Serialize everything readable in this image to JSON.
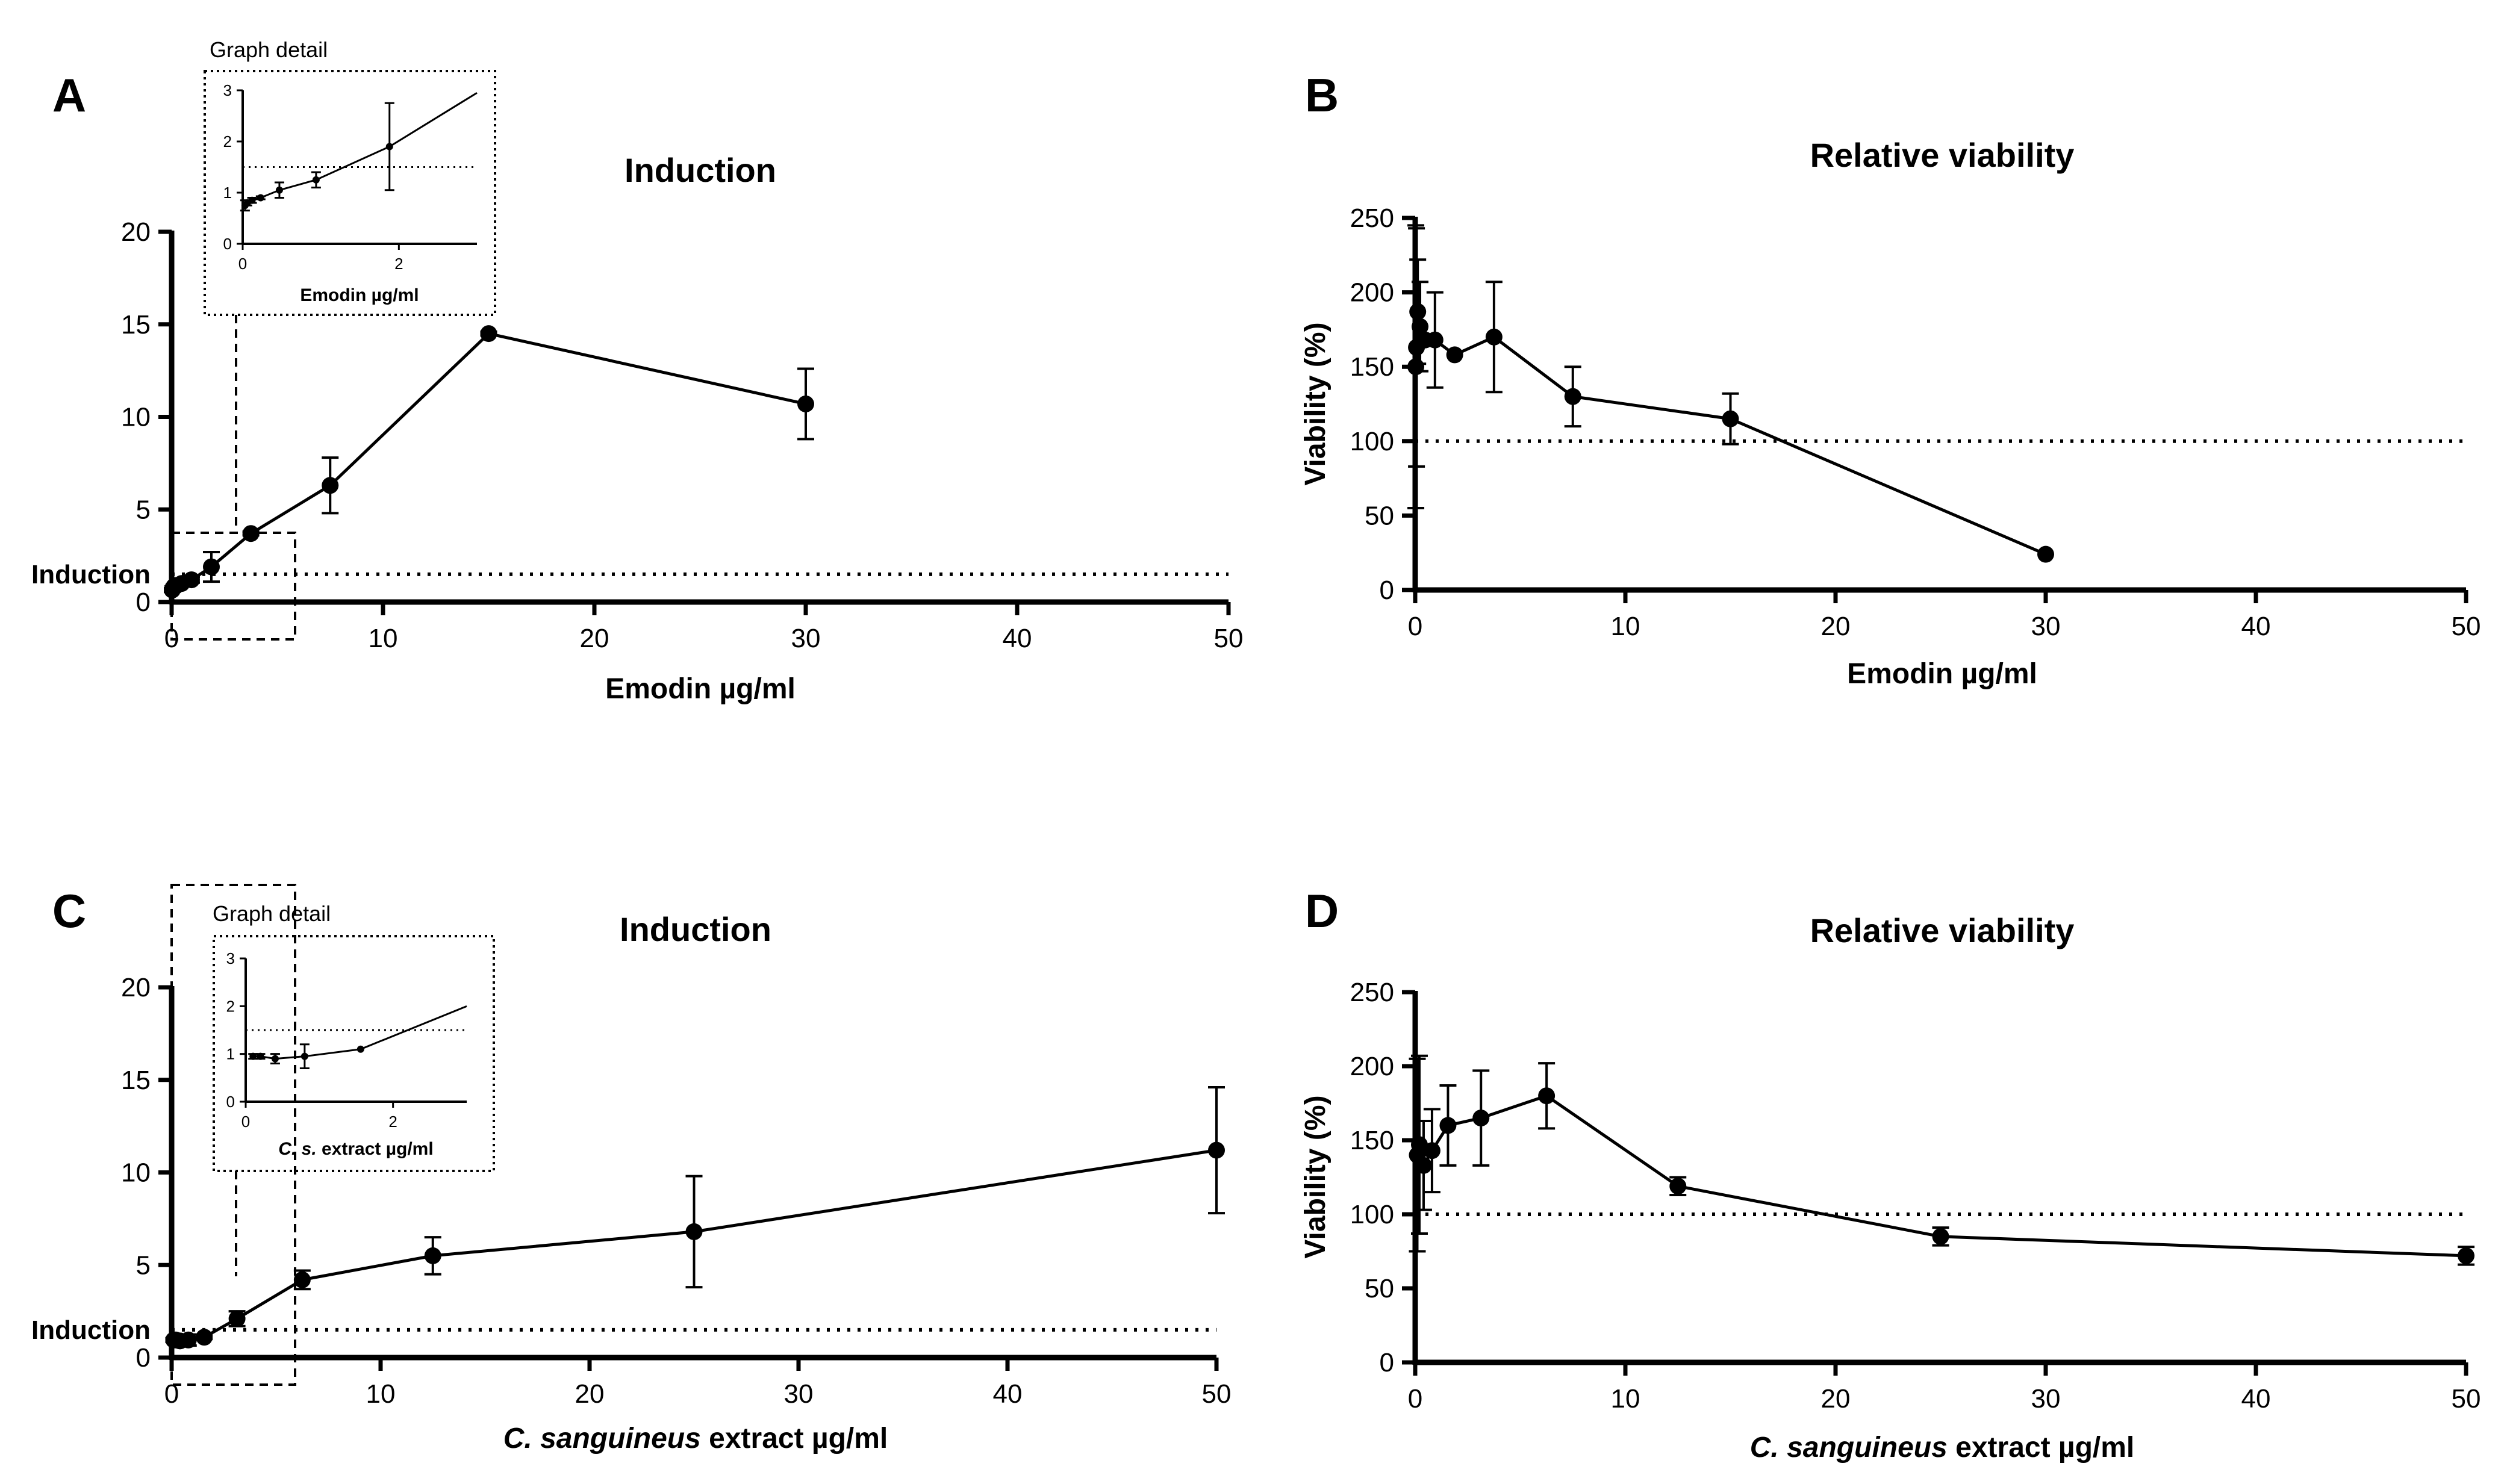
{
  "chart_data": [
    {
      "panel": "A",
      "type": "line",
      "title": "Induction",
      "xlabel": "Emodin µg/ml",
      "ylabel": "",
      "xlim": [
        0,
        50
      ],
      "ylim": [
        0,
        20
      ],
      "xticks": [
        0,
        10,
        20,
        30,
        40,
        50
      ],
      "yticks": [
        0,
        5,
        10,
        15,
        20
      ],
      "reference_line": {
        "y": 1.5,
        "label": "Induction"
      },
      "grid": false,
      "series": [
        {
          "x": [
            0.03,
            0.06,
            0.12,
            0.23,
            0.47,
            0.94,
            1.88,
            3.75,
            7.5,
            15,
            30
          ],
          "y": [
            0.65,
            0.75,
            0.85,
            0.9,
            1.0,
            1.2,
            1.9,
            3.7,
            6.3,
            14.5,
            10.7
          ],
          "err": [
            0.1,
            0.1,
            0.08,
            0.05,
            0.15,
            0.15,
            0.8,
            0.1,
            1.5,
            0.1,
            1.9
          ]
        }
      ],
      "inset": {
        "label": "Graph detail",
        "xlabel": "Emodin µg/ml",
        "xlim": [
          0,
          3
        ],
        "ylim": [
          0,
          3
        ],
        "xticks": [
          0,
          2
        ],
        "yticks": [
          0,
          1,
          2,
          3
        ],
        "reference_line": {
          "y": 1.5
        },
        "x": [
          0.03,
          0.06,
          0.12,
          0.23,
          0.47,
          0.94,
          1.88,
          3.0
        ],
        "y": [
          0.75,
          0.8,
          0.85,
          0.9,
          1.05,
          1.25,
          1.9,
          2.95
        ],
        "err": [
          0.1,
          0.05,
          0.05,
          0.03,
          0.15,
          0.15,
          0.85,
          0
        ]
      }
    },
    {
      "panel": "B",
      "type": "line",
      "title": "Relative viability",
      "xlabel": "Emodin µg/ml",
      "ylabel": "Viability (%)",
      "xlim": [
        0,
        50
      ],
      "ylim": [
        0,
        250
      ],
      "xticks": [
        0,
        10,
        20,
        30,
        40,
        50
      ],
      "yticks": [
        0,
        50,
        100,
        150,
        200,
        250
      ],
      "reference_line": {
        "y": 100
      },
      "grid": false,
      "series": [
        {
          "x": [
            0.03,
            0.06,
            0.12,
            0.23,
            0.47,
            0.94,
            1.88,
            3.75,
            7.5,
            15,
            30
          ],
          "y": [
            150,
            163,
            187,
            177,
            168,
            168,
            158,
            170,
            130,
            115,
            24
          ],
          "err": [
            95,
            80,
            35,
            30,
            0,
            32,
            0,
            37,
            20,
            17,
            0
          ]
        }
      ]
    },
    {
      "panel": "C",
      "type": "line",
      "title": "Induction",
      "xlabel": "C. sanguineus extract µg/ml",
      "ylabel": "",
      "xlim": [
        0,
        50
      ],
      "ylim": [
        0,
        20
      ],
      "xticks": [
        0,
        10,
        20,
        30,
        40,
        50
      ],
      "yticks": [
        0,
        5,
        10,
        15,
        20
      ],
      "reference_line": {
        "y": 1.5,
        "label": "Induction"
      },
      "grid": false,
      "series": [
        {
          "x": [
            0.1,
            0.2,
            0.4,
            0.8,
            1.56,
            3.13,
            6.25,
            12.5,
            25,
            50
          ],
          "y": [
            0.95,
            0.95,
            0.9,
            0.95,
            1.1,
            2.1,
            4.2,
            5.5,
            6.8,
            11.2
          ],
          "err": [
            0.1,
            0.1,
            0.15,
            0.3,
            0.1,
            0.4,
            0.5,
            1.0,
            3.0,
            3.4
          ]
        }
      ],
      "inset": {
        "label": "Graph detail",
        "xlabel": "C. s. extract µg/ml",
        "xlim": [
          0,
          3
        ],
        "ylim": [
          0,
          3
        ],
        "xticks": [
          0,
          2
        ],
        "yticks": [
          0,
          1,
          2,
          3
        ],
        "reference_line": {
          "y": 1.5
        },
        "x": [
          0.1,
          0.2,
          0.4,
          0.8,
          1.56,
          3.0
        ],
        "y": [
          0.95,
          0.95,
          0.9,
          0.95,
          1.1,
          2.0
        ],
        "err": [
          0.05,
          0.05,
          0.1,
          0.25,
          0,
          0
        ]
      }
    },
    {
      "panel": "D",
      "type": "line",
      "title": "Relative viability",
      "xlabel": "C. sanguineus extract µg/ml",
      "ylabel": "Viability (%)",
      "xlim": [
        0,
        50
      ],
      "ylim": [
        0,
        250
      ],
      "xticks": [
        0,
        10,
        20,
        30,
        40,
        50
      ],
      "yticks": [
        0,
        50,
        100,
        150,
        200,
        250
      ],
      "reference_line": {
        "y": 100
      },
      "grid": false,
      "series": [
        {
          "x": [
            0.1,
            0.2,
            0.4,
            0.8,
            1.56,
            3.13,
            6.25,
            12.5,
            25,
            50
          ],
          "y": [
            140,
            147,
            133,
            143,
            160,
            165,
            180,
            119,
            85,
            72
          ],
          "err": [
            65,
            60,
            30,
            28,
            27,
            32,
            22,
            6,
            6,
            6
          ]
        }
      ]
    }
  ]
}
